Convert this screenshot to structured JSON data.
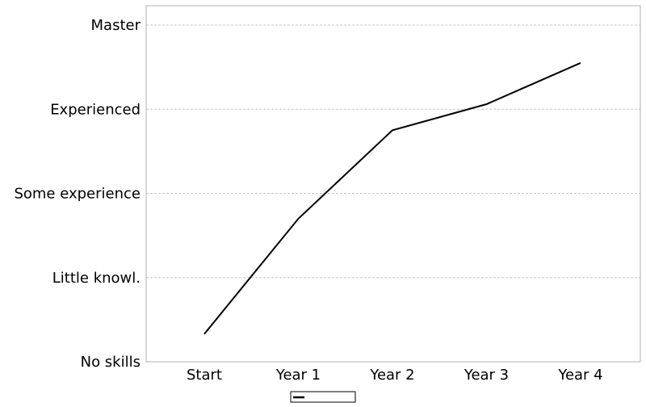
{
  "chart_data": {
    "type": "line",
    "title": "",
    "xlabel": "",
    "ylabel": "",
    "categories": [
      "Start",
      "Year 1",
      "Year 2",
      "Year 3",
      "Year 4"
    ],
    "y_levels": [
      "No skills",
      "Little knowl.",
      "Some experience",
      "Experienced",
      "Master"
    ],
    "ylim": [
      0,
      4
    ],
    "grid": {
      "horizontal": true,
      "vertical": false
    },
    "legend": {
      "position": "bottom-center",
      "entries": [
        {
          "name": "",
          "color": "#000000"
        }
      ]
    },
    "series": [
      {
        "name": "",
        "color": "#000000",
        "values": [
          0.33,
          1.7,
          2.75,
          3.06,
          3.55
        ]
      }
    ]
  }
}
